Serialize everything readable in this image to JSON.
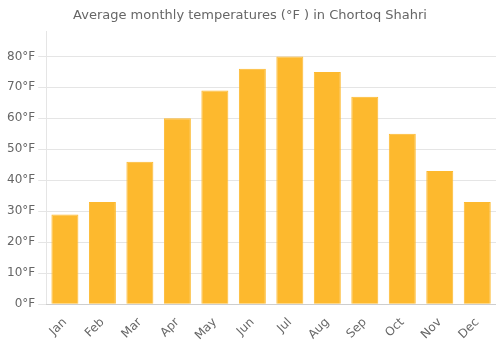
{
  "chart_data": {
    "type": "bar",
    "title": "Average monthly temperatures (°F ) in Chortoq Shahri",
    "categories": [
      "Jan",
      "Feb",
      "Mar",
      "Apr",
      "May",
      "Jun",
      "Jul",
      "Aug",
      "Sep",
      "Oct",
      "Nov",
      "Dec"
    ],
    "values": [
      29,
      33,
      46,
      60,
      69,
      76,
      80,
      75,
      67,
      55,
      43,
      33
    ],
    "color": "#FDB92E",
    "ylim": [
      0,
      88
    ],
    "yticks": [
      {
        "value": 0,
        "label": "0°F"
      },
      {
        "value": 10,
        "label": "10°F"
      },
      {
        "value": 20,
        "label": "20°F"
      },
      {
        "value": 30,
        "label": "30°F"
      },
      {
        "value": 40,
        "label": "40°F"
      },
      {
        "value": 50,
        "label": "50°F"
      },
      {
        "value": 60,
        "label": "60°F"
      },
      {
        "value": 70,
        "label": "70°F"
      },
      {
        "value": 80,
        "label": "80°F"
      }
    ],
    "grid": true
  }
}
